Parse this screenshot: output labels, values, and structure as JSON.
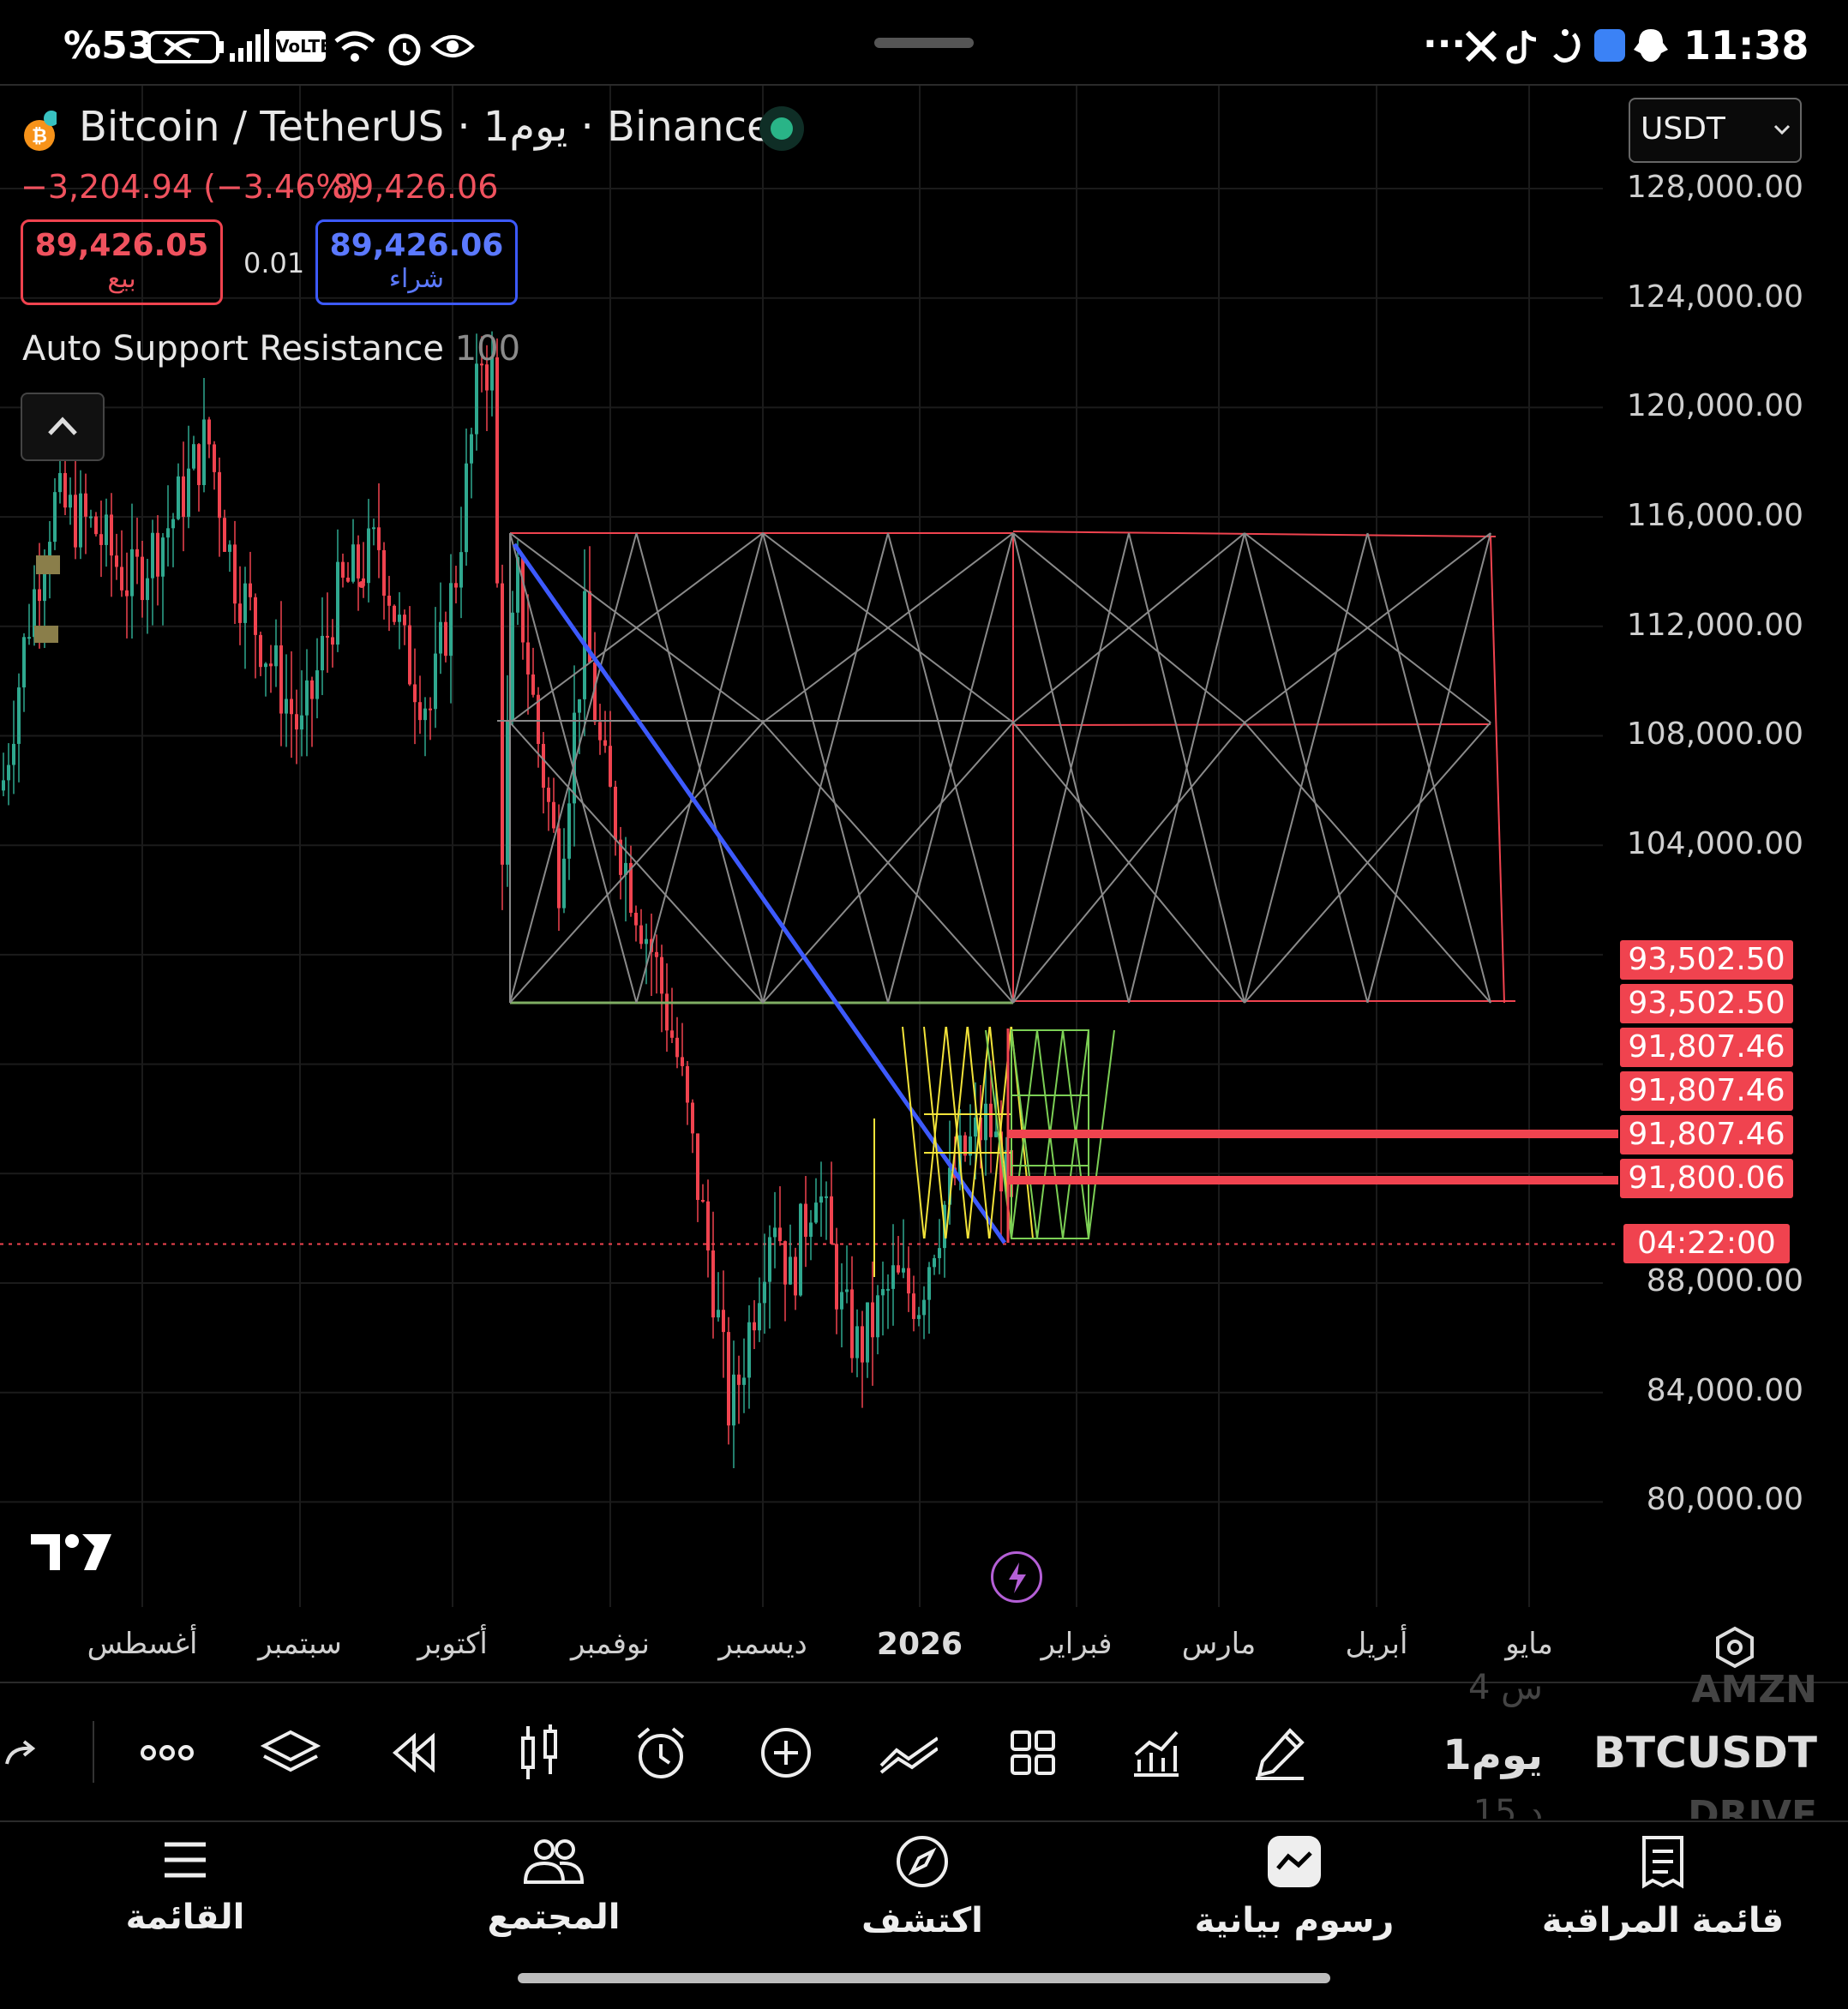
{
  "status_bar": {
    "battery": "%53",
    "network_badge": "VoLTE",
    "overflow": "···",
    "time": "11:38"
  },
  "chart_header": {
    "symbol_title": "Bitcoin / TetherUS · 1يوم · Binance",
    "change": "−3,204.94 (−3.46%)",
    "last_price": "89,426.06",
    "sell_price": "89,426.05",
    "sell_label": "بيع",
    "spread": "0.01",
    "buy_price": "89,426.06",
    "buy_label": "شراء",
    "indicator_name": "Auto Support Resistance",
    "indicator_param": "100",
    "currency_select": "USDT"
  },
  "chart_data": {
    "type": "candlestick",
    "title": "Bitcoin / TetherUS · 1يوم · Binance",
    "y_ticks": [
      "128,000.00",
      "124,000.00",
      "120,000.00",
      "116,000.00",
      "112,000.00",
      "108,000.00",
      "104,000.00",
      "88,000.00",
      "84,000.00",
      "80,000.00"
    ],
    "y_tick_values": [
      128000,
      124000,
      120000,
      116000,
      112000,
      108000,
      104000,
      88000,
      84000,
      80000
    ],
    "price_labels": [
      "93,502.50",
      "93,502.50",
      "91,807.46",
      "91,807.46",
      "91,807.46",
      "91,800.06"
    ],
    "countdown_label": "04:22:00",
    "x_ticks": [
      "أغسطس",
      "سبتمبر",
      "أكتوبر",
      "نوفمبر",
      "ديسمبر",
      "2026",
      "فبراير",
      "مارس",
      "أبريل",
      "مايو"
    ],
    "ylim": [
      76000,
      130000
    ],
    "colors": {
      "up": "#2fa88f",
      "down": "#f0434f",
      "blue_trend": "#3d5afe",
      "yellow_pattern": "#f2e33a",
      "green_pattern": "#7ccf55",
      "grid_lines": "#8a8a8a",
      "box_red": "#f0434f"
    }
  },
  "toolbar": {
    "watch_symbols": [
      "AMZN",
      "BTCUSDT",
      "DRIVE"
    ],
    "interval_top": "4 س",
    "interval": "1يوم",
    "interval_bottom": "15 د"
  },
  "bottom_nav": [
    {
      "label": "القائمة",
      "icon": "menu-icon"
    },
    {
      "label": "المجتمع",
      "icon": "community-icon"
    },
    {
      "label": "اكتشف",
      "icon": "compass-icon"
    },
    {
      "label": "رسوم بيانية",
      "icon": "chart-icon"
    },
    {
      "label": "قائمة المراقبة",
      "icon": "watchlist-icon"
    }
  ]
}
